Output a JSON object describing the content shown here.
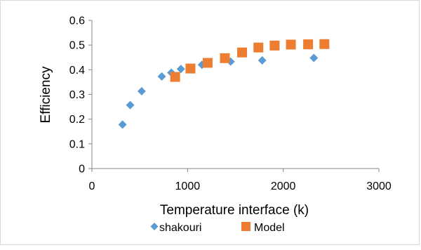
{
  "chart_data": {
    "type": "scatter",
    "title": "",
    "xlabel": "Temperature interface (k)",
    "ylabel": "Efficiency",
    "xlim": [
      0,
      3000
    ],
    "ylim": [
      0,
      0.6
    ],
    "xticks": [
      0,
      1000,
      2000,
      3000
    ],
    "yticks": [
      0,
      0.1,
      0.2,
      0.3,
      0.4,
      0.5,
      0.6
    ],
    "xtick_labels": [
      "0",
      "1000",
      "2000",
      "3000"
    ],
    "ytick_labels": [
      "0",
      "0.1",
      "0.2",
      "0.3",
      "0.4",
      "0.5",
      "0.6"
    ],
    "grid": false,
    "legend_position": "bottom",
    "series": [
      {
        "name": "shakouri",
        "marker": "diamond",
        "color": "#5B9BD5",
        "points": [
          [
            320,
            0.178
          ],
          [
            400,
            0.257
          ],
          [
            520,
            0.313
          ],
          [
            730,
            0.373
          ],
          [
            830,
            0.388
          ],
          [
            930,
            0.403
          ],
          [
            1150,
            0.42
          ],
          [
            1450,
            0.433
          ],
          [
            1780,
            0.438
          ],
          [
            2320,
            0.448
          ]
        ]
      },
      {
        "name": "Model",
        "marker": "square",
        "color": "#ED7D31",
        "points": [
          [
            870,
            0.371
          ],
          [
            1030,
            0.405
          ],
          [
            1210,
            0.428
          ],
          [
            1390,
            0.447
          ],
          [
            1570,
            0.47
          ],
          [
            1740,
            0.49
          ],
          [
            1910,
            0.498
          ],
          [
            2080,
            0.502
          ],
          [
            2260,
            0.503
          ],
          [
            2430,
            0.504
          ]
        ]
      }
    ]
  }
}
